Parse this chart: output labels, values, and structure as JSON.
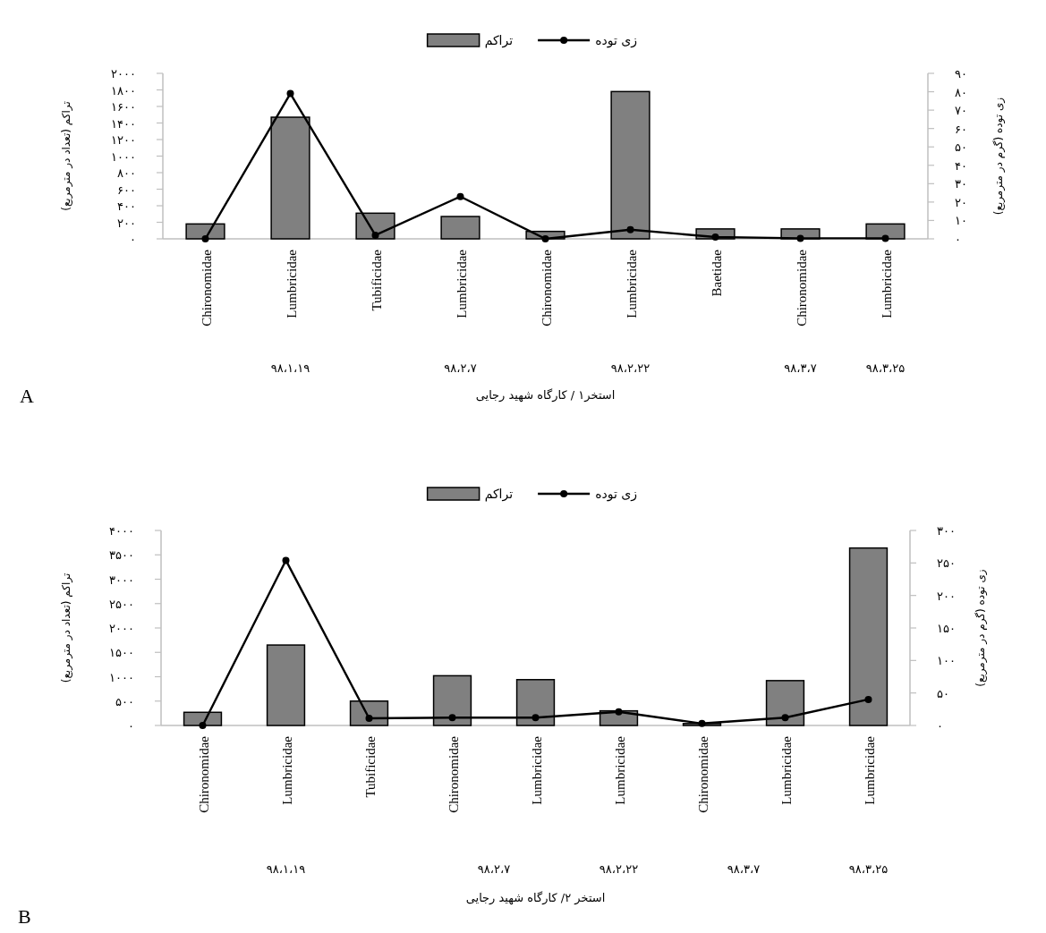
{
  "chart_data": [
    {
      "type": "bar",
      "title": "A",
      "xlabel": "استخر۱ / کارگاه شهید رجایی",
      "ylabel": "تراکم (تعداد در مترمربع)",
      "y2label": "زی توده (گرم در مترمربع)",
      "categories": [
        "Chironomidae",
        "Lumbricidae",
        "Tubificidae",
        "Lumbricidae",
        "Chironomidae",
        "Lumbricidae",
        "Baetidae",
        "Chironomidae",
        "Lumbricidae"
      ],
      "series": [
        {
          "name": "زی توده",
          "type": "line",
          "axis": "y2",
          "color": "#000000",
          "values": [
            0,
            79,
            2,
            23,
            0,
            5,
            1,
            0.3,
            0.3
          ]
        },
        {
          "name": "تراکم",
          "color": "#808080",
          "values": [
            180,
            1470,
            310,
            270,
            90,
            1780,
            120,
            120,
            180
          ]
        }
      ],
      "ylim": [
        0,
        2000
      ],
      "yticks": [
        {
          "value": 0,
          "label": "۰"
        },
        {
          "value": 200,
          "label": "۲۰۰"
        },
        {
          "value": 400,
          "label": "۴۰۰"
        },
        {
          "value": 600,
          "label": "۶۰۰"
        },
        {
          "value": 800,
          "label": "۸۰۰"
        },
        {
          "value": 1000,
          "label": "۱۰۰۰"
        },
        {
          "value": 1200,
          "label": "۱۲۰۰"
        },
        {
          "value": 1400,
          "label": "۱۴۰۰"
        },
        {
          "value": 1600,
          "label": "۱۶۰۰"
        },
        {
          "value": 1800,
          "label": "۱۸۰۰"
        },
        {
          "value": 2000,
          "label": "۲۰۰۰"
        }
      ],
      "y2lim": [
        0,
        90
      ],
      "y2ticks": [
        {
          "value": 0,
          "label": "۰"
        },
        {
          "value": 10,
          "label": "۱۰"
        },
        {
          "value": 20,
          "label": "۲۰"
        },
        {
          "value": 30,
          "label": "۳۰"
        },
        {
          "value": 40,
          "label": "۴۰"
        },
        {
          "value": 50,
          "label": "۵۰"
        },
        {
          "value": 60,
          "label": "۶۰"
        },
        {
          "value": 70,
          "label": "۷۰"
        },
        {
          "value": 80,
          "label": "۸۰"
        },
        {
          "value": 90,
          "label": "۹۰"
        }
      ],
      "annotations": [
        "۹۸،۱،۱۹",
        "۹۸،۲،۷",
        "۹۸،۲،۲۲",
        "۹۸،۳،۷",
        "۹۸،۳،۲۵"
      ],
      "legend": "top",
      "marker": "circle"
    },
    {
      "type": "bar",
      "title": "B",
      "xlabel": "استخر ۲/ کارگاه شهید رجایی",
      "ylabel": "تراکم (تعداد در مترمربع)",
      "y2label": "زی توده (گرم در مترمربع)",
      "categories": [
        "Chironomidae",
        "Lumbricidae",
        "Tubificidae",
        "Chironomidae",
        "Lumbricidae",
        "Lumbricidae",
        "Chironomidae",
        "Lumbricidae",
        "Lumbricidae"
      ],
      "series": [
        {
          "name": "زی توده",
          "type": "line",
          "axis": "y2",
          "color": "#000000",
          "values": [
            0,
            254,
            11,
            12,
            12,
            21,
            3,
            12,
            40
          ]
        },
        {
          "name": "تراکم",
          "color": "#808080",
          "values": [
            270,
            1650,
            500,
            1020,
            940,
            300,
            40,
            920,
            3640
          ]
        }
      ],
      "ylim": [
        0,
        4000
      ],
      "yticks": [
        {
          "value": 0,
          "label": "۰"
        },
        {
          "value": 500,
          "label": "۵۰۰"
        },
        {
          "value": 1000,
          "label": "۱۰۰۰"
        },
        {
          "value": 1500,
          "label": "۱۵۰۰"
        },
        {
          "value": 2000,
          "label": "۲۰۰۰"
        },
        {
          "value": 2500,
          "label": "۲۵۰۰"
        },
        {
          "value": 3000,
          "label": "۳۰۰۰"
        },
        {
          "value": 3500,
          "label": "۳۵۰۰"
        },
        {
          "value": 4000,
          "label": "۴۰۰۰"
        }
      ],
      "y2lim": [
        0,
        300
      ],
      "y2ticks": [
        {
          "value": 0,
          "label": "۰"
        },
        {
          "value": 50,
          "label": "۵۰"
        },
        {
          "value": 100,
          "label": "۱۰۰"
        },
        {
          "value": 150,
          "label": "۱۵۰"
        },
        {
          "value": 200,
          "label": "۲۰۰"
        },
        {
          "value": 250,
          "label": "۲۵۰"
        },
        {
          "value": 300,
          "label": "۳۰۰"
        }
      ],
      "annotations": [
        "۹۸،۱،۱۹",
        "۹۸،۲،۷",
        "۹۸،۲،۲۲",
        "۹۸،۳،۷",
        "۹۸،۳،۲۵"
      ],
      "legend": "top",
      "marker": "circle"
    }
  ]
}
